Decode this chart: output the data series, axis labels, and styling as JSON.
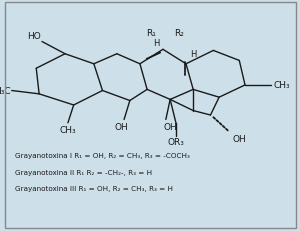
{
  "background_color": "#cde0ea",
  "line_color": "#1a1a1a",
  "line_width": 1.0,
  "fig_width": 3.0,
  "fig_height": 2.32,
  "dpi": 100,
  "text_lines": [
    "Grayanotoxina I R₁ = OH, R₂ = CH₃, R₃ = -COCH₃",
    "Grayanotoxina II R₁ R₂ = -CH₂-, R₃ = H",
    "Grayanotoxina III R₁ = OH, R₂ = CH₃, R₃ = H"
  ],
  "text_fontsize": 5.2
}
